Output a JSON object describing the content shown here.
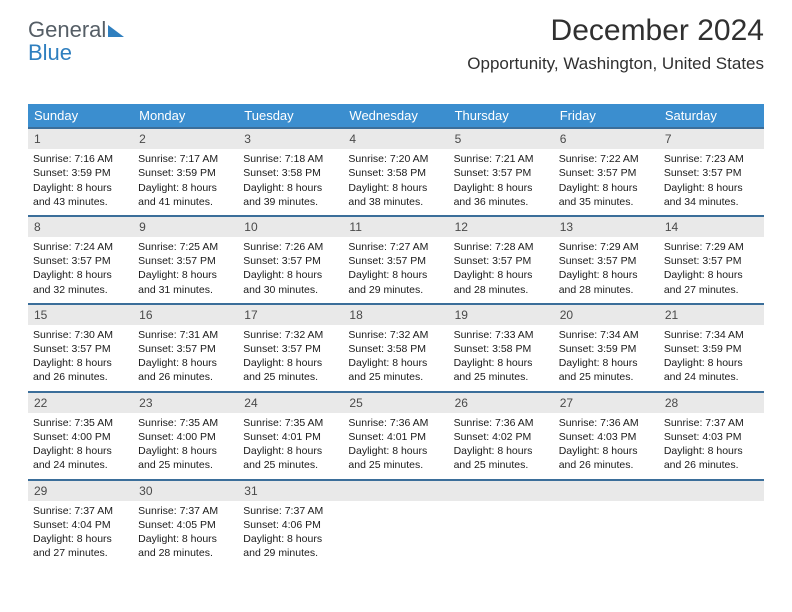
{
  "brand": {
    "part1": "General",
    "part2": "Blue"
  },
  "title": "December 2024",
  "location": "Opportunity, Washington, United States",
  "colors": {
    "header_bg": "#3b8ecf",
    "header_text": "#ffffff",
    "week_divider": "#3b6e9a",
    "daynum_bg": "#e9e9e9",
    "text": "#1a1a1a",
    "logo_gray": "#555e66",
    "logo_blue": "#2f7fbf"
  },
  "day_headers": [
    "Sunday",
    "Monday",
    "Tuesday",
    "Wednesday",
    "Thursday",
    "Friday",
    "Saturday"
  ],
  "weeks": [
    [
      {
        "n": "1",
        "sr": "7:16 AM",
        "ss": "3:59 PM",
        "dl": "8 hours and 43 minutes."
      },
      {
        "n": "2",
        "sr": "7:17 AM",
        "ss": "3:59 PM",
        "dl": "8 hours and 41 minutes."
      },
      {
        "n": "3",
        "sr": "7:18 AM",
        "ss": "3:58 PM",
        "dl": "8 hours and 39 minutes."
      },
      {
        "n": "4",
        "sr": "7:20 AM",
        "ss": "3:58 PM",
        "dl": "8 hours and 38 minutes."
      },
      {
        "n": "5",
        "sr": "7:21 AM",
        "ss": "3:57 PM",
        "dl": "8 hours and 36 minutes."
      },
      {
        "n": "6",
        "sr": "7:22 AM",
        "ss": "3:57 PM",
        "dl": "8 hours and 35 minutes."
      },
      {
        "n": "7",
        "sr": "7:23 AM",
        "ss": "3:57 PM",
        "dl": "8 hours and 34 minutes."
      }
    ],
    [
      {
        "n": "8",
        "sr": "7:24 AM",
        "ss": "3:57 PM",
        "dl": "8 hours and 32 minutes."
      },
      {
        "n": "9",
        "sr": "7:25 AM",
        "ss": "3:57 PM",
        "dl": "8 hours and 31 minutes."
      },
      {
        "n": "10",
        "sr": "7:26 AM",
        "ss": "3:57 PM",
        "dl": "8 hours and 30 minutes."
      },
      {
        "n": "11",
        "sr": "7:27 AM",
        "ss": "3:57 PM",
        "dl": "8 hours and 29 minutes."
      },
      {
        "n": "12",
        "sr": "7:28 AM",
        "ss": "3:57 PM",
        "dl": "8 hours and 28 minutes."
      },
      {
        "n": "13",
        "sr": "7:29 AM",
        "ss": "3:57 PM",
        "dl": "8 hours and 28 minutes."
      },
      {
        "n": "14",
        "sr": "7:29 AM",
        "ss": "3:57 PM",
        "dl": "8 hours and 27 minutes."
      }
    ],
    [
      {
        "n": "15",
        "sr": "7:30 AM",
        "ss": "3:57 PM",
        "dl": "8 hours and 26 minutes."
      },
      {
        "n": "16",
        "sr": "7:31 AM",
        "ss": "3:57 PM",
        "dl": "8 hours and 26 minutes."
      },
      {
        "n": "17",
        "sr": "7:32 AM",
        "ss": "3:57 PM",
        "dl": "8 hours and 25 minutes."
      },
      {
        "n": "18",
        "sr": "7:32 AM",
        "ss": "3:58 PM",
        "dl": "8 hours and 25 minutes."
      },
      {
        "n": "19",
        "sr": "7:33 AM",
        "ss": "3:58 PM",
        "dl": "8 hours and 25 minutes."
      },
      {
        "n": "20",
        "sr": "7:34 AM",
        "ss": "3:59 PM",
        "dl": "8 hours and 25 minutes."
      },
      {
        "n": "21",
        "sr": "7:34 AM",
        "ss": "3:59 PM",
        "dl": "8 hours and 24 minutes."
      }
    ],
    [
      {
        "n": "22",
        "sr": "7:35 AM",
        "ss": "4:00 PM",
        "dl": "8 hours and 24 minutes."
      },
      {
        "n": "23",
        "sr": "7:35 AM",
        "ss": "4:00 PM",
        "dl": "8 hours and 25 minutes."
      },
      {
        "n": "24",
        "sr": "7:35 AM",
        "ss": "4:01 PM",
        "dl": "8 hours and 25 minutes."
      },
      {
        "n": "25",
        "sr": "7:36 AM",
        "ss": "4:01 PM",
        "dl": "8 hours and 25 minutes."
      },
      {
        "n": "26",
        "sr": "7:36 AM",
        "ss": "4:02 PM",
        "dl": "8 hours and 25 minutes."
      },
      {
        "n": "27",
        "sr": "7:36 AM",
        "ss": "4:03 PM",
        "dl": "8 hours and 26 minutes."
      },
      {
        "n": "28",
        "sr": "7:37 AM",
        "ss": "4:03 PM",
        "dl": "8 hours and 26 minutes."
      }
    ],
    [
      {
        "n": "29",
        "sr": "7:37 AM",
        "ss": "4:04 PM",
        "dl": "8 hours and 27 minutes."
      },
      {
        "n": "30",
        "sr": "7:37 AM",
        "ss": "4:05 PM",
        "dl": "8 hours and 28 minutes."
      },
      {
        "n": "31",
        "sr": "7:37 AM",
        "ss": "4:06 PM",
        "dl": "8 hours and 29 minutes."
      },
      {
        "empty": true
      },
      {
        "empty": true
      },
      {
        "empty": true
      },
      {
        "empty": true
      }
    ]
  ],
  "labels": {
    "sunrise_prefix": "Sunrise: ",
    "sunset_prefix": "Sunset: ",
    "daylight_prefix": "Daylight: "
  }
}
